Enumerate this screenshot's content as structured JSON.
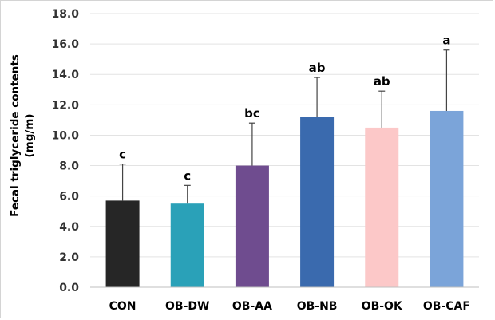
{
  "chart_data": {
    "type": "bar",
    "title": "",
    "xlabel": "",
    "ylabel": "Fecal triglyceride contents",
    "ylabel_unit": "(mg/m)",
    "ylim": [
      0,
      18
    ],
    "ytick_step": 2,
    "ytick_labels": [
      "0.0",
      "2.0",
      "4.0",
      "6.0",
      "8.0",
      "10.0",
      "12.0",
      "14.0",
      "16.0",
      "18.0"
    ],
    "grid": true,
    "categories": [
      "CON",
      "OB-DW",
      "OB-AA",
      "OB-NB",
      "OB-OK",
      "OB-CAF"
    ],
    "values": [
      5.7,
      5.5,
      8.0,
      11.2,
      10.5,
      11.6
    ],
    "error_upper": [
      2.4,
      1.2,
      2.8,
      2.6,
      2.4,
      4.0
    ],
    "significance_labels": [
      "c",
      "c",
      "bc",
      "ab",
      "ab",
      "a"
    ],
    "colors": [
      "#262626",
      "#2aa1b8",
      "#6f4c8f",
      "#3a6aae",
      "#fcc8c8",
      "#7ba4d9"
    ],
    "gridline_color": "#e3e3e3",
    "axis_color": "#bfbfbf"
  }
}
